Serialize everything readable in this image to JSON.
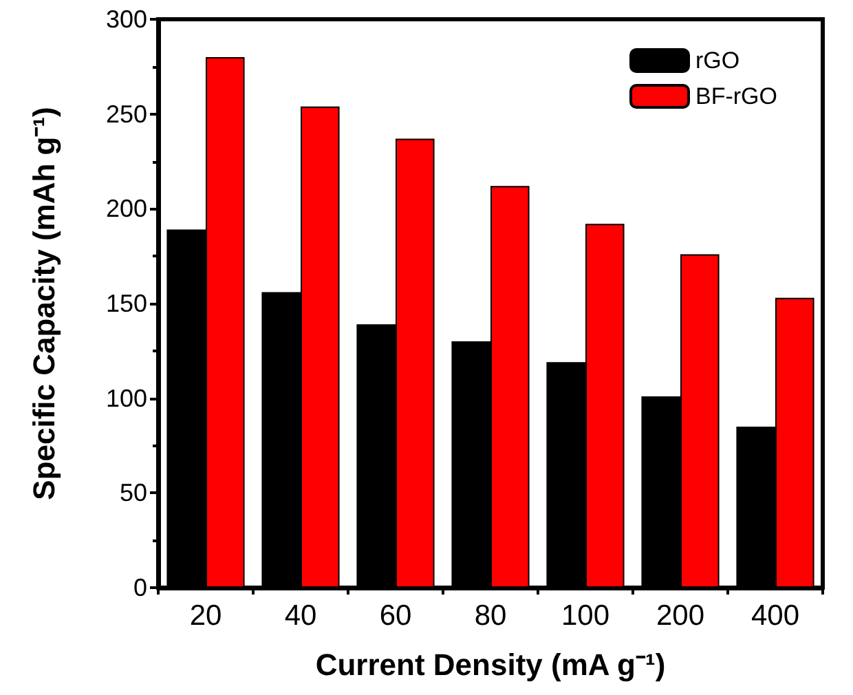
{
  "chart_data": {
    "type": "bar",
    "xlabel": "Current Density (mA g⁻¹)",
    "ylabel": "Specific Capacity (mAh g⁻¹)",
    "categories": [
      "20",
      "40",
      "60",
      "80",
      "100",
      "200",
      "400"
    ],
    "series": [
      {
        "name": "rGO",
        "color": "#000000",
        "values": [
          189,
          156,
          139,
          130,
          119,
          101,
          85
        ]
      },
      {
        "name": "BF-rGO",
        "color": "#ff0000",
        "values": [
          280,
          254,
          237,
          212,
          192,
          176,
          153
        ]
      }
    ],
    "ylim": [
      0,
      300
    ],
    "yticks": [
      0,
      50,
      100,
      150,
      200,
      250,
      300
    ],
    "grid": false,
    "legend": "top right"
  }
}
